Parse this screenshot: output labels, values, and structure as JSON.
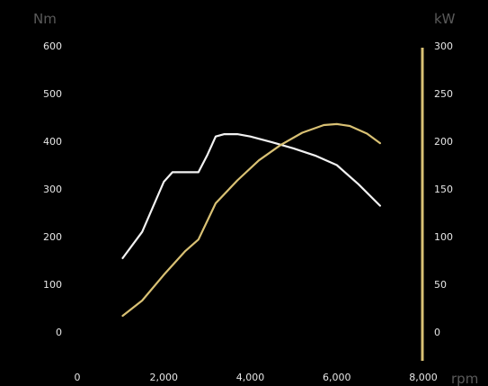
{
  "chart_data": {
    "type": "line",
    "title": "",
    "x_unit": "rpm",
    "y_left_unit": "Nm",
    "y_right_unit": "kW",
    "xlim": [
      0,
      8000
    ],
    "x_ticks": [
      0,
      2000,
      4000,
      6000,
      8000
    ],
    "x_tick_labels": [
      "0",
      "2,000",
      "4,000",
      "6,000",
      "8,000"
    ],
    "y_left_lim": [
      0,
      600
    ],
    "y_left_ticks": [
      0,
      100,
      200,
      300,
      400,
      500,
      600
    ],
    "y_left_tick_labels": [
      "0",
      "100",
      "200",
      "300",
      "400",
      "500",
      "600"
    ],
    "y_right_lim": [
      0,
      300
    ],
    "y_right_ticks": [
      0,
      50,
      100,
      150,
      200,
      250,
      300
    ],
    "y_right_tick_labels": [
      "0",
      "50",
      "100",
      "150",
      "200",
      "250",
      "300"
    ],
    "grid": false,
    "series": [
      {
        "axis": "left",
        "color": "#f2f2f2",
        "x": [
          1050,
          1500,
          2000,
          2200,
          2400,
          2800,
          3000,
          3200,
          3400,
          3700,
          4000,
          4500,
          5000,
          5500,
          6000,
          6500,
          7000
        ],
        "y": [
          155,
          210,
          315,
          335,
          335,
          335,
          370,
          410,
          415,
          415,
          410,
          398,
          385,
          370,
          350,
          310,
          265
        ]
      },
      {
        "axis": "right",
        "color": "#d9c174",
        "x": [
          1050,
          1500,
          2000,
          2500,
          2800,
          3200,
          3700,
          4200,
          4700,
          5200,
          5700,
          6000,
          6300,
          6700,
          7000
        ],
        "y": [
          17,
          33,
          60,
          85,
          97,
          135,
          159,
          180,
          196,
          209,
          217,
          218,
          216,
          208,
          198
        ]
      }
    ],
    "right_axis_color": "#d9c174"
  }
}
